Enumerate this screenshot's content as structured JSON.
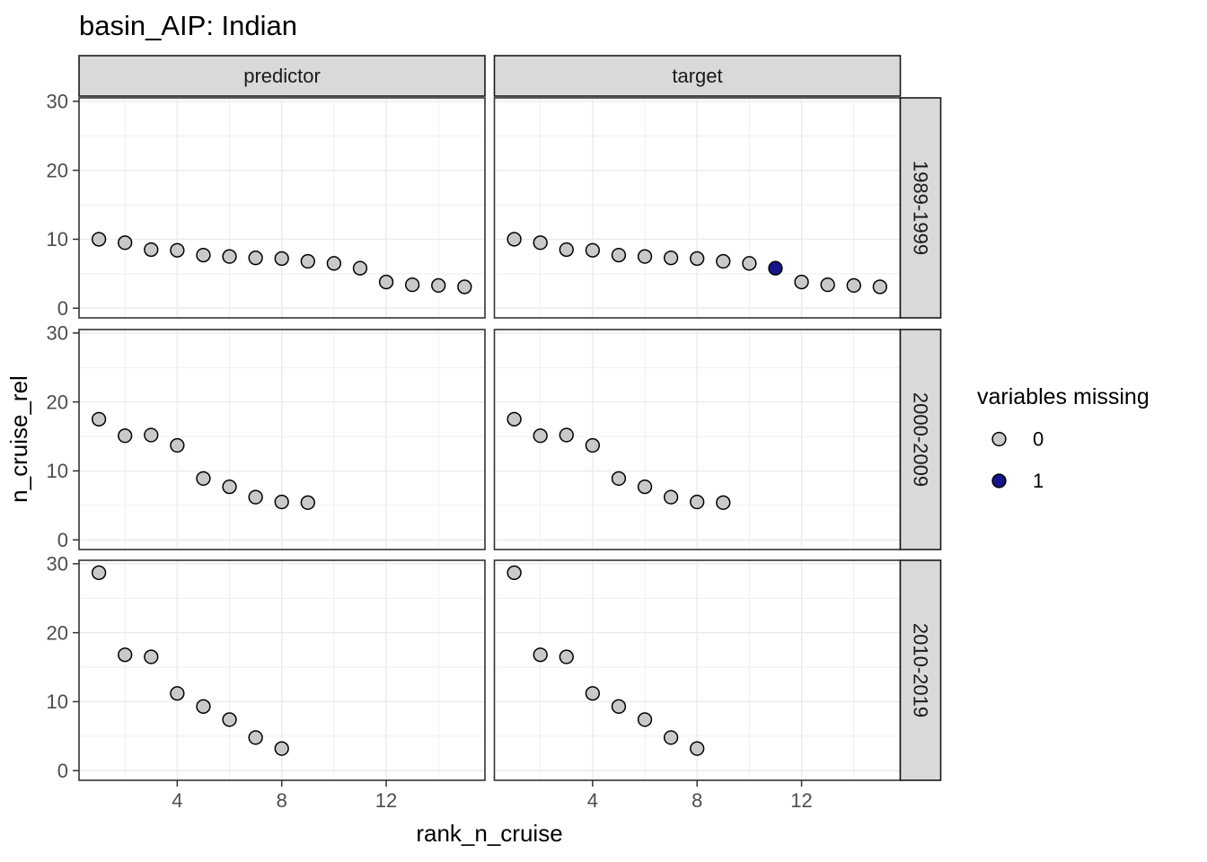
{
  "title": "basin_AIP: Indian",
  "axes": {
    "x_label": "rank_n_cruise",
    "y_label": "n_cruise_rel",
    "x_ticks": [
      4,
      8,
      12
    ],
    "y_ticks": [
      0,
      10,
      20,
      30
    ]
  },
  "facets": {
    "cols": [
      "predictor",
      "target"
    ],
    "rows": [
      "1989-1999",
      "2000-2009",
      "2010-2019"
    ]
  },
  "legend": {
    "title": "variables missing",
    "items": [
      {
        "label": "0",
        "color": "#c9c9c9"
      },
      {
        "label": "1",
        "color": "#14148c"
      }
    ]
  },
  "colors": {
    "point_stroke": "#000000",
    "grid": "#ebebeb",
    "panel_border": "#333333",
    "tick_mark": "#333333",
    "strip_bg": "#d9d9d9"
  },
  "chart_data": {
    "type": "scatter",
    "xlabel": "rank_n_cruise",
    "ylabel": "n_cruise_rel",
    "x_domain": [
      0.24,
      15.78
    ],
    "y_domain": [
      -1.4,
      30.5
    ],
    "x_major": [
      4,
      8,
      12
    ],
    "x_minor": [
      2,
      6,
      10,
      14
    ],
    "y_major": [
      0,
      10,
      20,
      30
    ],
    "y_minor": [
      5,
      15,
      25
    ],
    "grid": true,
    "legend_position": "right",
    "point_legend_key": "variables missing (0 = gray, 1 = navy)",
    "panels": [
      {
        "row": "1989-1999",
        "col": "predictor",
        "points": [
          [
            1,
            10,
            0
          ],
          [
            2,
            9.5,
            0
          ],
          [
            3,
            8.5,
            0
          ],
          [
            4,
            8.4,
            0
          ],
          [
            5,
            7.7,
            0
          ],
          [
            6,
            7.5,
            0
          ],
          [
            7,
            7.3,
            0
          ],
          [
            8,
            7.2,
            0
          ],
          [
            9,
            6.8,
            0
          ],
          [
            10,
            6.5,
            0
          ],
          [
            11,
            5.8,
            0
          ],
          [
            12,
            3.8,
            0
          ],
          [
            13,
            3.4,
            0
          ],
          [
            14,
            3.3,
            0
          ],
          [
            15,
            3.1,
            0
          ]
        ]
      },
      {
        "row": "1989-1999",
        "col": "target",
        "points": [
          [
            1,
            10,
            0
          ],
          [
            2,
            9.5,
            0
          ],
          [
            3,
            8.5,
            0
          ],
          [
            4,
            8.4,
            0
          ],
          [
            5,
            7.7,
            0
          ],
          [
            6,
            7.5,
            0
          ],
          [
            7,
            7.3,
            0
          ],
          [
            8,
            7.2,
            0
          ],
          [
            9,
            6.8,
            0
          ],
          [
            10,
            6.5,
            0
          ],
          [
            11,
            5.8,
            1
          ],
          [
            12,
            3.8,
            0
          ],
          [
            13,
            3.4,
            0
          ],
          [
            14,
            3.3,
            0
          ],
          [
            15,
            3.1,
            0
          ]
        ]
      },
      {
        "row": "2000-2009",
        "col": "predictor",
        "points": [
          [
            1,
            17.5,
            0
          ],
          [
            2,
            15.1,
            0
          ],
          [
            3,
            15.2,
            0
          ],
          [
            4,
            13.7,
            0
          ],
          [
            5,
            8.9,
            0
          ],
          [
            6,
            7.7,
            0
          ],
          [
            7,
            6.2,
            0
          ],
          [
            8,
            5.5,
            0
          ],
          [
            9,
            5.4,
            0
          ]
        ]
      },
      {
        "row": "2000-2009",
        "col": "target",
        "points": [
          [
            1,
            17.5,
            0
          ],
          [
            2,
            15.1,
            0
          ],
          [
            3,
            15.2,
            0
          ],
          [
            4,
            13.7,
            0
          ],
          [
            5,
            8.9,
            0
          ],
          [
            6,
            7.7,
            0
          ],
          [
            7,
            6.2,
            0
          ],
          [
            8,
            5.5,
            0
          ],
          [
            9,
            5.4,
            0
          ]
        ]
      },
      {
        "row": "2010-2019",
        "col": "predictor",
        "points": [
          [
            1,
            28.7,
            0
          ],
          [
            2,
            16.8,
            0
          ],
          [
            3,
            16.5,
            0
          ],
          [
            4,
            11.2,
            0
          ],
          [
            5,
            9.3,
            0
          ],
          [
            6,
            7.4,
            0
          ],
          [
            7,
            4.8,
            0
          ],
          [
            8,
            3.2,
            0
          ]
        ]
      },
      {
        "row": "2010-2019",
        "col": "target",
        "points": [
          [
            1,
            28.7,
            0
          ],
          [
            2,
            16.8,
            0
          ],
          [
            3,
            16.5,
            0
          ],
          [
            4,
            11.2,
            0
          ],
          [
            5,
            9.3,
            0
          ],
          [
            6,
            7.4,
            0
          ],
          [
            7,
            4.8,
            0
          ],
          [
            8,
            3.2,
            0
          ]
        ]
      }
    ]
  }
}
